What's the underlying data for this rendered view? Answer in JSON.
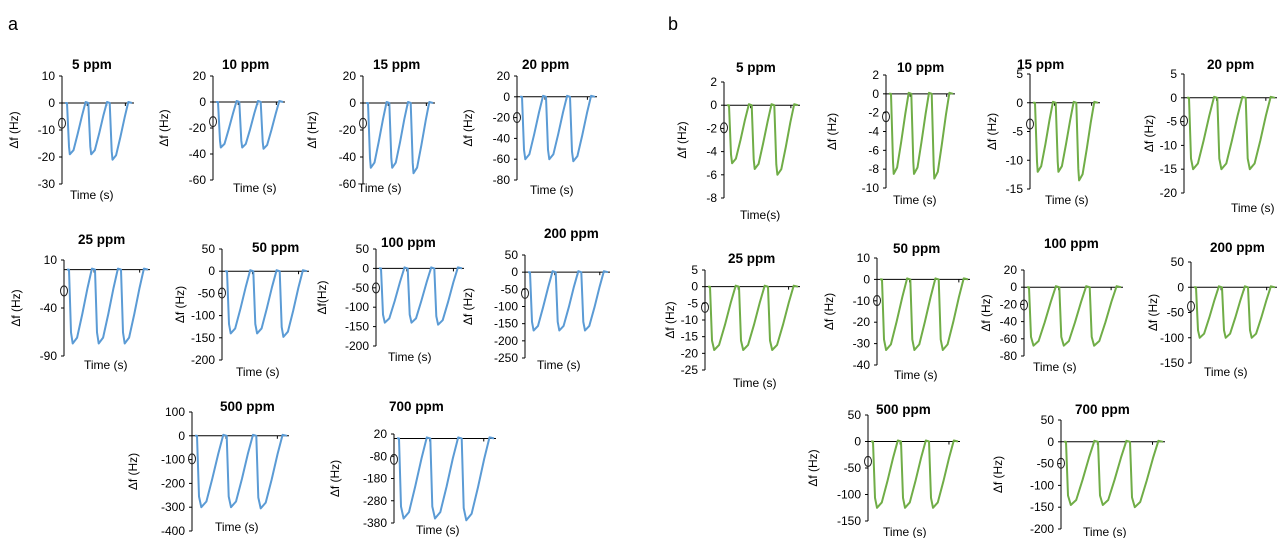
{
  "figure": {
    "panel_labels": [
      "a",
      "b"
    ]
  },
  "colors": {
    "a": "#5b9bd5",
    "b": "#70ad47"
  },
  "chart_data": [
    {
      "panel": "a",
      "type": "line",
      "title": "5 ppm",
      "xlabel": "Time (s)",
      "ylabel": "Δf (Hz)",
      "ylim": [
        -30,
        10
      ],
      "yticks": [
        10,
        0,
        -10,
        -20,
        -30
      ],
      "min_values": [
        -19,
        -19,
        -21
      ],
      "series": [
        {
          "name": "",
          "color": "#5b9bd5"
        }
      ]
    },
    {
      "panel": "a",
      "type": "line",
      "title": "10 ppm",
      "xlabel": "Time (s)",
      "ylabel": "Δf (Hz)",
      "ylim": [
        -60,
        20
      ],
      "yticks": [
        20,
        0,
        -20,
        -40,
        -60
      ],
      "min_values": [
        -35,
        -35,
        -36
      ],
      "series": [
        {
          "name": "",
          "color": "#5b9bd5"
        }
      ]
    },
    {
      "panel": "a",
      "type": "line",
      "title": "15 ppm",
      "xlabel": "Time (s)",
      "ylabel": "Δf (Hz)",
      "ylim": [
        -60,
        20
      ],
      "yticks": [
        20,
        0,
        -20,
        -40,
        -60
      ],
      "min_values": [
        -48,
        -48,
        -52
      ],
      "series": [
        {
          "name": "",
          "color": "#5b9bd5"
        }
      ]
    },
    {
      "panel": "a",
      "type": "line",
      "title": "20 ppm",
      "xlabel": "Time (s)",
      "ylabel": "Δf (Hz)",
      "ylim": [
        -80,
        20
      ],
      "yticks": [
        20,
        0,
        -20,
        -40,
        -60,
        -80
      ],
      "min_values": [
        -60,
        -60,
        -62
      ],
      "series": [
        {
          "name": "",
          "color": "#5b9bd5"
        }
      ]
    },
    {
      "panel": "a",
      "type": "line",
      "title": "25 ppm",
      "xlabel": "Time (s)",
      "ylabel": "Δf (Hz)",
      "ylim": [
        -90,
        10
      ],
      "yticks": [
        10,
        -40,
        -90
      ],
      "min_values": [
        -77,
        -77,
        -77
      ],
      "series": [
        {
          "name": "",
          "color": "#5b9bd5"
        }
      ]
    },
    {
      "panel": "a",
      "type": "line",
      "title": "50 ppm",
      "xlabel": "Time (s)",
      "ylabel": "Δf (Hz)",
      "ylim": [
        -200,
        50
      ],
      "yticks": [
        50,
        0,
        -50,
        -100,
        -150,
        -200
      ],
      "min_values": [
        -140,
        -140,
        -148
      ],
      "series": [
        {
          "name": "",
          "color": "#5b9bd5"
        }
      ]
    },
    {
      "panel": "a",
      "type": "line",
      "title": "100 ppm",
      "xlabel": "Time (s)",
      "ylabel": "Δf(Hz)",
      "ylim": [
        -200,
        50
      ],
      "yticks": [
        50,
        0,
        -50,
        -100,
        -150,
        -200
      ],
      "min_values": [
        -140,
        -140,
        -145
      ],
      "series": [
        {
          "name": "",
          "color": "#5b9bd5"
        }
      ]
    },
    {
      "panel": "a",
      "type": "line",
      "title": "200 ppm",
      "xlabel": "Time (s)",
      "ylabel": "Δf (Hz)",
      "ylim": [
        -250,
        50
      ],
      "yticks": [
        50,
        0,
        -50,
        -100,
        -150,
        -200,
        -250
      ],
      "min_values": [
        -170,
        -170,
        -170
      ],
      "series": [
        {
          "name": "",
          "color": "#5b9bd5"
        }
      ]
    },
    {
      "panel": "a",
      "type": "line",
      "title": "500 ppm",
      "xlabel": "Time (s)",
      "ylabel": "Δf (Hz)",
      "ylim": [
        -400,
        100
      ],
      "yticks": [
        100,
        0,
        -100,
        -200,
        -300,
        -400
      ],
      "min_values": [
        -300,
        -300,
        -305
      ],
      "series": [
        {
          "name": "",
          "color": "#5b9bd5"
        }
      ]
    },
    {
      "panel": "a",
      "type": "line",
      "title": "700 ppm",
      "xlabel": "Time (s)",
      "ylabel": "Δf (Hz)",
      "ylim": [
        -380,
        20
      ],
      "yticks": [
        20,
        -80,
        -180,
        -280,
        -380
      ],
      "min_values": [
        -360,
        -360,
        -368
      ],
      "series": [
        {
          "name": "",
          "color": "#5b9bd5"
        }
      ]
    },
    {
      "panel": "b",
      "type": "line",
      "title": "5 ppm",
      "xlabel": "Time(s)",
      "ylabel": "Δf (Hz)",
      "ylim": [
        -8,
        2
      ],
      "yticks": [
        2,
        0,
        -2,
        -4,
        -6,
        -8
      ],
      "min_values": [
        -5,
        -5.5,
        -6
      ],
      "series": [
        {
          "name": "",
          "color": "#70ad47"
        }
      ]
    },
    {
      "panel": "b",
      "type": "line",
      "title": "10 ppm",
      "xlabel": "Time (s)",
      "ylabel": "Δf (Hz)",
      "ylim": [
        -10,
        2
      ],
      "yticks": [
        2,
        0,
        -2,
        -4,
        -6,
        -8,
        -10
      ],
      "min_values": [
        -8.5,
        -8.5,
        -9
      ],
      "series": [
        {
          "name": "",
          "color": "#70ad47"
        }
      ]
    },
    {
      "panel": "b",
      "type": "line",
      "title": "15 ppm",
      "xlabel": "Time (s)",
      "ylabel": "Δf (Hz)",
      "ylim": [
        -15,
        5
      ],
      "yticks": [
        5,
        0,
        -5,
        -10,
        -15
      ],
      "min_values": [
        -12,
        -12,
        -13.5
      ],
      "series": [
        {
          "name": "",
          "color": "#70ad47"
        }
      ]
    },
    {
      "panel": "b",
      "type": "line",
      "title": "20 ppm",
      "xlabel": "Time (s)",
      "ylabel": "Δf (Hz)",
      "ylim": [
        -20,
        5
      ],
      "yticks": [
        5,
        0,
        -5,
        -10,
        -15,
        -20
      ],
      "min_values": [
        -15,
        -15,
        -15
      ],
      "series": [
        {
          "name": "",
          "color": "#70ad47"
        }
      ]
    },
    {
      "panel": "b",
      "type": "line",
      "title": "25 ppm",
      "xlabel": "Time (s)",
      "ylabel": "Δf (Hz)",
      "ylim": [
        -25,
        5
      ],
      "yticks": [
        5,
        0,
        -5,
        -10,
        -15,
        -20,
        -25
      ],
      "min_values": [
        -19,
        -19,
        -19
      ],
      "series": [
        {
          "name": "",
          "color": "#70ad47"
        }
      ]
    },
    {
      "panel": "b",
      "type": "line",
      "title": "50 ppm",
      "xlabel": "Time (s)",
      "ylabel": "Δf (Hz)",
      "ylim": [
        -40,
        10
      ],
      "yticks": [
        10,
        0,
        -10,
        -20,
        -30,
        -40
      ],
      "min_values": [
        -33,
        -33,
        -33
      ],
      "series": [
        {
          "name": "",
          "color": "#70ad47"
        }
      ]
    },
    {
      "panel": "b",
      "type": "line",
      "title": "100 ppm",
      "xlabel": "Time (s)",
      "ylabel": "Δf (Hz)",
      "ylim": [
        -80,
        20
      ],
      "yticks": [
        20,
        0,
        -20,
        -40,
        -60,
        -80
      ],
      "min_values": [
        -68,
        -68,
        -68
      ],
      "series": [
        {
          "name": "",
          "color": "#70ad47"
        }
      ]
    },
    {
      "panel": "b",
      "type": "line",
      "title": "200 ppm",
      "xlabel": "Time (s)",
      "ylabel": "Δf (Hz)",
      "ylim": [
        -150,
        50
      ],
      "yticks": [
        50,
        0,
        -50,
        -100,
        -150
      ],
      "min_values": [
        -100,
        -100,
        -100
      ],
      "series": [
        {
          "name": "",
          "color": "#70ad47"
        }
      ]
    },
    {
      "panel": "b",
      "type": "line",
      "title": "500 ppm",
      "xlabel": "Time (s)",
      "ylabel": "Δf (Hz)",
      "ylim": [
        -150,
        50
      ],
      "yticks": [
        50,
        0,
        -50,
        -100,
        -150
      ],
      "min_values": [
        -125,
        -125,
        -125
      ],
      "series": [
        {
          "name": "",
          "color": "#70ad47"
        }
      ]
    },
    {
      "panel": "b",
      "type": "line",
      "title": "700 ppm",
      "xlabel": "Time (s)",
      "ylabel": "Δf (Hz)",
      "ylim": [
        -200,
        50
      ],
      "yticks": [
        50,
        0,
        -50,
        -100,
        -150,
        -200
      ],
      "min_values": [
        -145,
        -145,
        -150
      ],
      "series": [
        {
          "name": "",
          "color": "#70ad47"
        }
      ]
    }
  ]
}
